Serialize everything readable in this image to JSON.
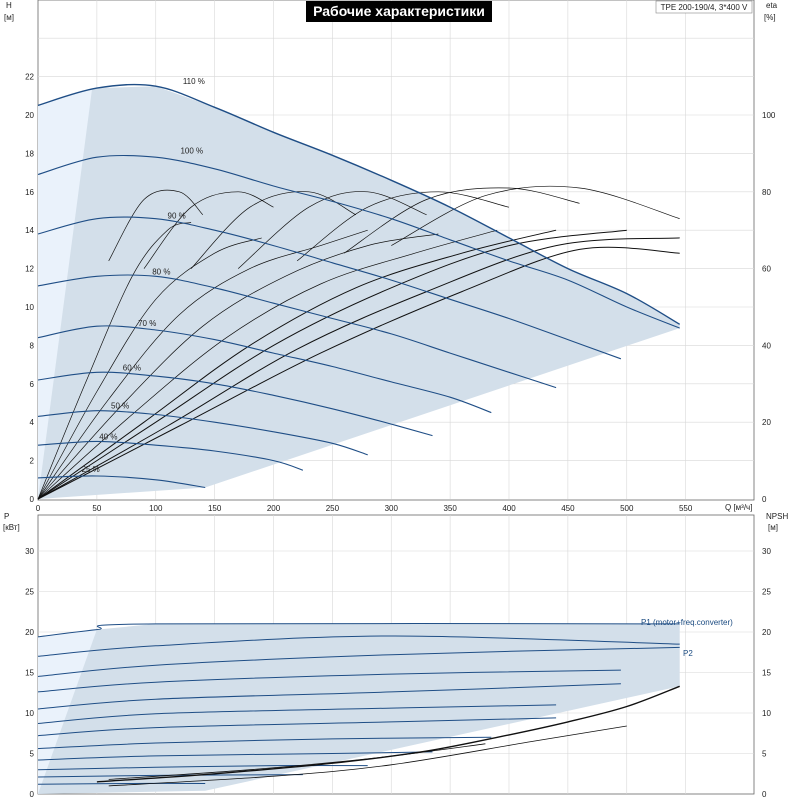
{
  "chart_data": [
    {
      "type": "line",
      "title": "Рабочие характеристики",
      "model": "TPE 200-190/4, 3*400 V",
      "left_axis": {
        "label": "H",
        "unit": "[м]",
        "range": [
          0,
          25
        ],
        "ticks": [
          0,
          2,
          4,
          6,
          8,
          10,
          12,
          14,
          16,
          18,
          20,
          22
        ]
      },
      "right_axis": {
        "label": "eta",
        "unit": "[%]",
        "range": [
          0,
          125
        ],
        "ticks": [
          0,
          20,
          40,
          60,
          80,
          100
        ]
      },
      "x_axis": {
        "label": "Q [м³/ч]",
        "range": [
          0,
          600
        ],
        "ticks": [
          0,
          50,
          100,
          150,
          200,
          250,
          300,
          350,
          400,
          450,
          500,
          550
        ]
      },
      "grid": true,
      "speed_curves": [
        {
          "name": "110 %",
          "label_at": [
            123,
            21.5
          ],
          "x": [
            0,
            50,
            100,
            150,
            200,
            250,
            300,
            350,
            400,
            450,
            500,
            545
          ],
          "y": [
            20.5,
            21.4,
            21.5,
            20.4,
            19.1,
            17.9,
            16.6,
            15.2,
            13.6,
            12.0,
            10.7,
            9.1
          ]
        },
        {
          "name": "100 %",
          "label_at": [
            121,
            17.9
          ],
          "x": [
            0,
            50,
            100,
            150,
            200,
            250,
            300,
            350,
            400,
            450,
            500,
            545
          ],
          "y": [
            16.9,
            17.8,
            17.8,
            17.2,
            16.3,
            15.5,
            14.6,
            13.5,
            12.4,
            11.4,
            10.0,
            8.9
          ]
        },
        {
          "name": "90 %",
          "label_at": [
            110,
            14.5
          ],
          "x": [
            0,
            50,
            100,
            150,
            200,
            250,
            300,
            350,
            400,
            450,
            495
          ],
          "y": [
            13.8,
            14.6,
            14.6,
            14.0,
            13.2,
            12.3,
            11.4,
            10.4,
            9.4,
            8.3,
            7.3
          ]
        },
        {
          "name": "80 %",
          "label_at": [
            97,
            11.6
          ],
          "x": [
            0,
            50,
            100,
            150,
            200,
            250,
            300,
            350,
            400,
            440
          ],
          "y": [
            11.1,
            11.6,
            11.6,
            11.0,
            10.2,
            9.4,
            8.6,
            7.6,
            6.6,
            5.8
          ]
        },
        {
          "name": "70 %",
          "label_at": [
            85,
            8.9
          ],
          "x": [
            0,
            50,
            100,
            150,
            200,
            250,
            300,
            350,
            385
          ],
          "y": [
            8.4,
            9.0,
            8.8,
            8.3,
            7.6,
            6.9,
            6.1,
            5.3,
            4.5
          ]
        },
        {
          "name": "60 %",
          "label_at": [
            72,
            6.6
          ],
          "x": [
            0,
            50,
            100,
            150,
            200,
            250,
            300,
            335
          ],
          "y": [
            6.2,
            6.6,
            6.4,
            6.0,
            5.4,
            4.7,
            3.9,
            3.3
          ]
        },
        {
          "name": "50 %",
          "label_at": [
            62,
            4.6
          ],
          "x": [
            0,
            50,
            100,
            150,
            200,
            250,
            280
          ],
          "y": [
            4.3,
            4.6,
            4.4,
            4.0,
            3.5,
            2.9,
            2.3
          ]
        },
        {
          "name": "40 %",
          "label_at": [
            52,
            3.0
          ],
          "x": [
            0,
            50,
            100,
            150,
            200,
            225
          ],
          "y": [
            2.8,
            3.0,
            2.8,
            2.5,
            2.0,
            1.5
          ]
        },
        {
          "name": "25 %",
          "label_at": [
            37,
            1.3
          ],
          "x": [
            0,
            50,
            100,
            142
          ],
          "y": [
            1.1,
            1.2,
            1.0,
            0.6
          ]
        }
      ]
    },
    {
      "type": "line",
      "left_axis": {
        "label": "P",
        "unit": "[кВт]",
        "range": [
          0,
          35
        ],
        "ticks": [
          0,
          5,
          10,
          15,
          20,
          25,
          30
        ]
      },
      "right_axis": {
        "label": "NPSH",
        "unit": "[м]",
        "range": [
          0,
          35
        ],
        "ticks": [
          0,
          5,
          10,
          15,
          20,
          25,
          30
        ]
      },
      "x_axis": {
        "range": [
          0,
          600
        ]
      },
      "grid": true,
      "series_labels": [
        "P1 (motor+freq.converter)",
        "P2"
      ],
      "npsh_curve": {
        "x": [
          50,
          150,
          250,
          330,
          400,
          450,
          500,
          545
        ],
        "y": [
          1.5,
          2.5,
          3.8,
          5.3,
          7.3,
          8.9,
          10.8,
          13.3
        ]
      },
      "power_curves": [
        {
          "x": [
            0,
            50,
            100,
            545
          ],
          "y": [
            19.4,
            20.3,
            21.0,
            21.0
          ]
        },
        {
          "x": [
            0,
            100,
            300,
            545
          ],
          "y": [
            17.0,
            18.3,
            19.5,
            18.5
          ]
        },
        {
          "x": [
            0,
            100,
            300,
            545
          ],
          "y": [
            14.5,
            15.9,
            17.2,
            18.1
          ]
        },
        {
          "x": [
            0,
            100,
            300,
            495
          ],
          "y": [
            12.6,
            13.8,
            14.8,
            15.3
          ]
        },
        {
          "x": [
            0,
            100,
            300,
            495
          ],
          "y": [
            10.5,
            11.7,
            12.6,
            13.6
          ]
        },
        {
          "x": [
            0,
            100,
            300,
            440
          ],
          "y": [
            8.7,
            9.9,
            10.6,
            11.0
          ]
        },
        {
          "x": [
            0,
            100,
            300,
            440
          ],
          "y": [
            7.2,
            8.2,
            8.9,
            9.4
          ]
        },
        {
          "x": [
            0,
            100,
            250,
            385
          ],
          "y": [
            5.6,
            6.3,
            6.8,
            7.0
          ]
        },
        {
          "x": [
            0,
            100,
            250,
            335
          ],
          "y": [
            4.2,
            4.7,
            5.0,
            5.2
          ]
        },
        {
          "x": [
            0,
            100,
            200,
            280
          ],
          "y": [
            3.0,
            3.3,
            3.5,
            3.5
          ]
        },
        {
          "x": [
            0,
            100,
            225
          ],
          "y": [
            2.1,
            2.3,
            2.4
          ]
        },
        {
          "x": [
            0,
            80,
            142
          ],
          "y": [
            1.2,
            1.3,
            1.3
          ]
        }
      ]
    }
  ]
}
